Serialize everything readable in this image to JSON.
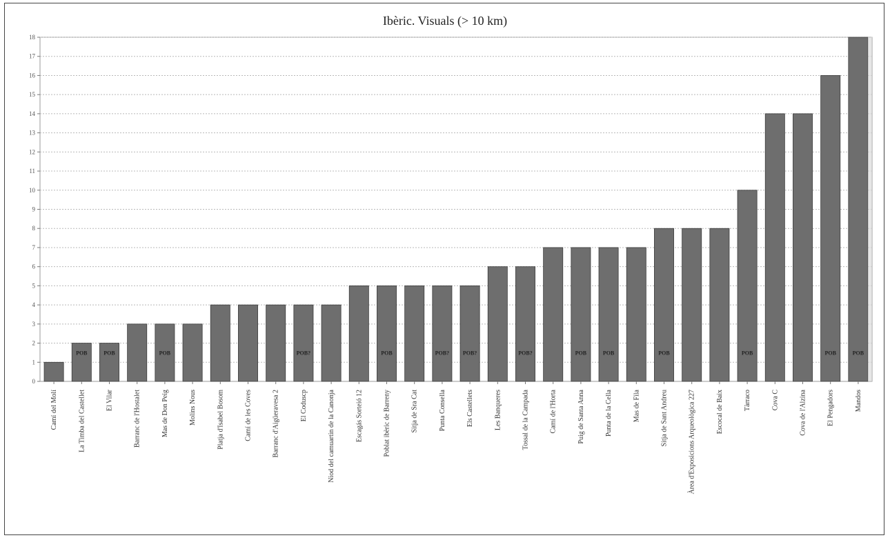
{
  "chart_data": {
    "type": "bar",
    "title": "Ibèric. Visuals (> 10 km)",
    "xlabel": "",
    "ylabel": "",
    "ylim": [
      0,
      18
    ],
    "yticks": [
      0,
      1,
      2,
      3,
      4,
      5,
      6,
      7,
      8,
      9,
      10,
      11,
      12,
      13,
      14,
      15,
      16,
      17,
      18
    ],
    "grid": "horizontal dashed",
    "bar_color": "#6e6e6e",
    "categories": [
      "Camí del Molí",
      "La Timba del Castellet",
      "El Vilar",
      "Barranc de l'Hostalet",
      "Mas de Don Peig",
      "Molins Nous",
      "Platja d'Isabel Bosom",
      "Camí de les Coves",
      "Barranc d'Aigüeravesa 2",
      "El Coduscp",
      "Niod del camuartin de la Canonja",
      "Escagás Sorteió 12",
      "Poblat ibèric de Barreny",
      "Sitja de Sra Cat",
      "Punta Consella",
      "Els Castellets",
      "Les Banqueres",
      "Tossal de la Campada",
      "Camí de l'Horta",
      "Puig de Santa Anna",
      "Punta de la Cella",
      "Mas de Fila",
      "Sitja de Sant Andreu",
      "Àrea d'Exposicions Arqueològica 227",
      "Escocal de Baix",
      "Tàrraco",
      "Cova C",
      "Cova de l'Alzina",
      "El Pengadors",
      "Mandos"
    ],
    "values": [
      1,
      2,
      2,
      3,
      3,
      3,
      4,
      4,
      4,
      4,
      4,
      5,
      5,
      5,
      5,
      5,
      6,
      6,
      7,
      7,
      7,
      7,
      8,
      8,
      8,
      10,
      14,
      14,
      16,
      18
    ],
    "bar_tags": [
      "",
      "POB",
      "POB",
      "",
      "POB",
      "",
      "",
      "",
      "",
      "POB?",
      "",
      "",
      "POB",
      "",
      "POB?",
      "POB?",
      "",
      "POB?",
      "",
      "POB",
      "POB",
      "",
      "POB",
      "",
      "",
      "POB",
      "",
      "",
      "POB",
      "POB"
    ]
  }
}
